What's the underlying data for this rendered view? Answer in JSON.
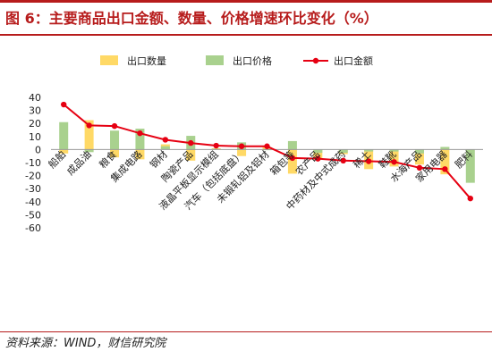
{
  "title": "图 6：主要商品出口金额、数量、价格增速环比变化（%）",
  "source": "资料来源：WIND，财信研究院",
  "colors": {
    "quantity": "#ffd966",
    "price": "#a9d18e",
    "amount": "#e60012",
    "brand": "#b71c1c"
  },
  "chart_data": {
    "type": "bar",
    "categories": [
      "船舶",
      "成品油",
      "粮食",
      "集成电路",
      "钢材",
      "陶瓷产品",
      "液晶平板显示模组",
      "汽车（包括底盘）",
      "未锻轧铝及铝材",
      "箱包等",
      "农产品",
      "中药材及中式成药",
      "稀土",
      "鞋靴",
      "水海产品",
      "家用电器",
      "肥料"
    ],
    "series": [
      {
        "name": "出口数量",
        "type": "bar",
        "values": [
          -3,
          22.5,
          -6,
          -7.5,
          4,
          -8.5,
          1,
          -5,
          2,
          -18.5,
          -6.5,
          -3.5,
          -15,
          -13,
          -11.5,
          -19,
          0
        ]
      },
      {
        "name": "出口价格",
        "type": "bar",
        "values": [
          21,
          -2,
          14.5,
          16,
          2.5,
          10.5,
          0.5,
          5.5,
          -0.5,
          6.5,
          -2.5,
          -2.5,
          -1.5,
          -1.5,
          -3,
          2,
          -25.5
        ]
      },
      {
        "name": "出口金额",
        "type": "line",
        "values": [
          34.5,
          18.5,
          18,
          12.5,
          7.5,
          5,
          3,
          2.5,
          2.5,
          -6.5,
          -7,
          -8.5,
          -9,
          -9.5,
          -14,
          -15,
          -37.5
        ]
      }
    ],
    "ylim": [
      -60,
      40
    ],
    "yticks": [
      40,
      30,
      20,
      10,
      0,
      -10,
      -20,
      -30,
      -40,
      -50,
      -60
    ],
    "grid": false,
    "legend": "top"
  }
}
